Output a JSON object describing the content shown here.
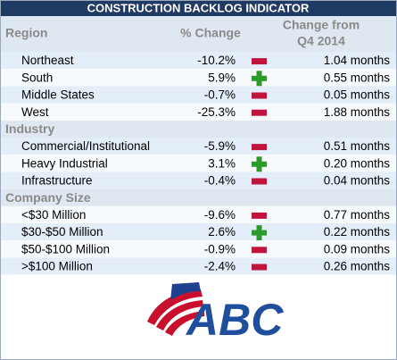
{
  "title": "CONSTRUCTION BACKLOG INDICATOR",
  "header": {
    "change": "% Change",
    "change_from": [
      "Change from",
      "Q4 2014"
    ]
  },
  "groups": [
    {
      "label": "Region",
      "rows": [
        [
          "Northeast",
          "-10.2%",
          "1.04 months"
        ],
        [
          "South",
          "5.9%",
          "0.55 months"
        ],
        [
          "Middle States",
          "-0.7%",
          "0.05 months"
        ],
        [
          "West",
          "-25.3%",
          "1.88 months"
        ]
      ]
    },
    {
      "label": "Industry",
      "rows": [
        [
          "Commercial/Institutional",
          "-5.9%",
          "0.51 months"
        ],
        [
          "Heavy Industrial",
          "3.1%",
          "0.20 months"
        ],
        [
          "Infrastructure",
          "-0.4%",
          "0.04 months"
        ]
      ]
    },
    {
      "label": "Company Size",
      "rows": [
        [
          "<$30 Million",
          "-9.6%",
          "0.77 months"
        ],
        [
          "$30-$50 Million",
          "2.6%",
          "0.22 months"
        ],
        [
          "$50-$100 Million",
          "-0.9%",
          "0.09 months"
        ],
        [
          ">$100 Million",
          "-2.4%",
          "0.26 months"
        ]
      ]
    }
  ],
  "logo": {
    "text": "ABC"
  }
}
